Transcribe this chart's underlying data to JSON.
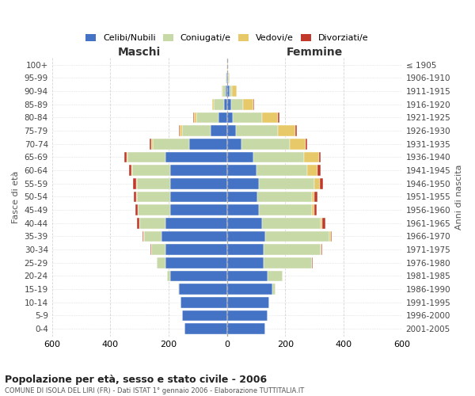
{
  "age_groups": [
    "0-4",
    "5-9",
    "10-14",
    "15-19",
    "20-24",
    "25-29",
    "30-34",
    "35-39",
    "40-44",
    "45-49",
    "50-54",
    "55-59",
    "60-64",
    "65-69",
    "70-74",
    "75-79",
    "80-84",
    "85-89",
    "90-94",
    "95-99",
    "100+"
  ],
  "birth_years": [
    "2001-2005",
    "1996-2000",
    "1991-1995",
    "1986-1990",
    "1981-1985",
    "1976-1980",
    "1971-1975",
    "1966-1970",
    "1961-1965",
    "1956-1960",
    "1951-1955",
    "1946-1950",
    "1941-1945",
    "1936-1940",
    "1931-1935",
    "1926-1930",
    "1921-1925",
    "1916-1920",
    "1911-1915",
    "1906-1910",
    "≤ 1905"
  ],
  "males": {
    "celibe": [
      145,
      155,
      160,
      165,
      195,
      210,
      210,
      225,
      210,
      195,
      195,
      195,
      195,
      210,
      130,
      55,
      30,
      10,
      5,
      2,
      0
    ],
    "coniugato": [
      0,
      0,
      0,
      2,
      10,
      30,
      50,
      60,
      90,
      110,
      115,
      115,
      130,
      130,
      125,
      100,
      75,
      35,
      10,
      2,
      0
    ],
    "vedovo": [
      0,
      0,
      0,
      0,
      0,
      0,
      0,
      1,
      1,
      1,
      1,
      2,
      2,
      3,
      5,
      8,
      8,
      5,
      2,
      0,
      0
    ],
    "divorziato": [
      0,
      0,
      0,
      0,
      0,
      2,
      3,
      5,
      8,
      7,
      8,
      10,
      10,
      8,
      5,
      3,
      2,
      0,
      0,
      0,
      0
    ]
  },
  "females": {
    "nubile": [
      130,
      140,
      145,
      155,
      140,
      125,
      125,
      130,
      120,
      110,
      105,
      110,
      100,
      90,
      50,
      30,
      20,
      15,
      10,
      3,
      2
    ],
    "coniugata": [
      0,
      0,
      0,
      10,
      50,
      165,
      195,
      220,
      200,
      180,
      185,
      190,
      175,
      175,
      165,
      145,
      100,
      40,
      8,
      2,
      0
    ],
    "vedova": [
      0,
      0,
      0,
      0,
      0,
      2,
      3,
      5,
      5,
      8,
      10,
      18,
      35,
      50,
      55,
      60,
      55,
      35,
      15,
      5,
      2
    ],
    "divorziata": [
      0,
      0,
      0,
      0,
      0,
      2,
      3,
      5,
      12,
      8,
      10,
      12,
      10,
      7,
      6,
      5,
      4,
      2,
      0,
      0,
      0
    ]
  },
  "colors": {
    "celibe": "#4472C4",
    "coniugato": "#c8d9a8",
    "vedovo": "#e8c96a",
    "divorziato": "#c0392b"
  },
  "xlim": 600,
  "title": "Popolazione per età, sesso e stato civile - 2006",
  "subtitle": "COMUNE DI ISOLA DEL LIRI (FR) - Dati ISTAT 1° gennaio 2006 - Elaborazione TUTTITALIA.IT",
  "ylabel_left": "Fasce di età",
  "ylabel_right": "Anni di nascita",
  "xlabel_maschi": "Maschi",
  "xlabel_femmine": "Femmine",
  "legend_labels": [
    "Celibi/Nubili",
    "Coniugati/e",
    "Vedovi/e",
    "Divorziati/e"
  ],
  "background_color": "#ffffff",
  "grid_color": "#cccccc"
}
